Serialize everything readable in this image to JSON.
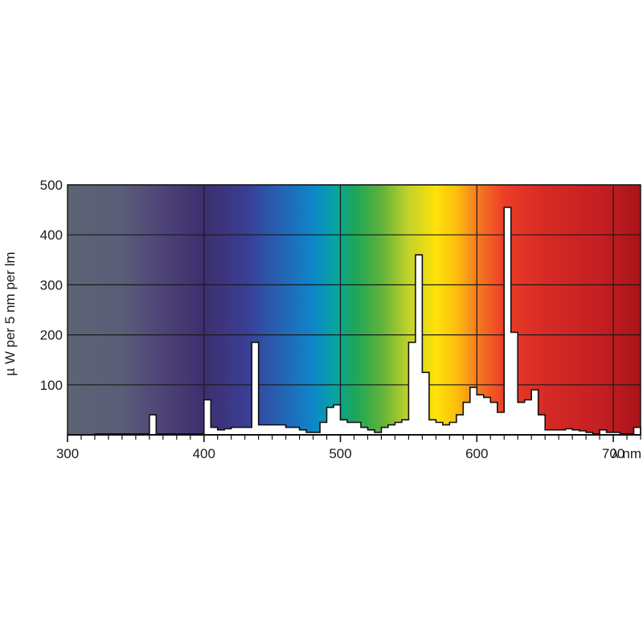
{
  "chart_data": {
    "type": "area",
    "title": "",
    "xlabel": "λ nm",
    "ylabel": "µ W per 5 nm per lm",
    "xlim": [
      300,
      720
    ],
    "ylim": [
      0,
      500
    ],
    "x_ticks": [
      300,
      400,
      500,
      600,
      700
    ],
    "y_ticks": [
      100,
      200,
      300,
      400,
      500
    ],
    "y_tick_labels": [
      "100",
      "200",
      "300",
      "400",
      "500"
    ],
    "x_tick_labels": [
      "300",
      "400",
      "500",
      "600",
      "700"
    ],
    "grid": true,
    "background": "visible-spectrum-gradient",
    "series": [
      {
        "x_start": [
          320,
          325,
          330,
          335,
          340,
          345,
          350,
          355,
          360,
          365,
          370,
          375,
          380,
          385,
          390,
          395,
          400,
          405,
          410,
          415,
          420,
          425,
          430,
          435,
          440,
          445,
          450,
          455,
          460,
          465,
          470,
          475,
          480,
          485,
          490,
          495,
          500,
          505,
          510,
          515,
          520,
          525,
          530,
          535,
          540,
          545,
          550,
          555,
          560,
          565,
          570,
          575,
          580,
          585,
          590,
          595,
          600,
          605,
          610,
          615,
          620,
          625,
          630,
          635,
          640,
          645,
          650,
          655,
          660,
          665,
          670,
          675,
          680,
          685,
          690,
          695,
          700,
          705,
          710,
          715
        ],
        "values": [
          2,
          2,
          2,
          2,
          2,
          2,
          2,
          2,
          40,
          2,
          2,
          2,
          2,
          2,
          2,
          2,
          70,
          15,
          10,
          12,
          15,
          15,
          15,
          185,
          20,
          20,
          20,
          20,
          15,
          15,
          10,
          5,
          5,
          25,
          55,
          60,
          30,
          25,
          25,
          15,
          10,
          5,
          15,
          20,
          25,
          30,
          185,
          360,
          125,
          30,
          25,
          20,
          25,
          40,
          65,
          95,
          80,
          75,
          65,
          45,
          455,
          205,
          65,
          70,
          90,
          40,
          10,
          10,
          10,
          12,
          10,
          8,
          5,
          2,
          10,
          5,
          5,
          2,
          2,
          15
        ]
      }
    ]
  },
  "colors": {
    "spectrum_stops": [
      {
        "wavelength": 300,
        "color": "#5c6474"
      },
      {
        "wavelength": 340,
        "color": "#5a5d78"
      },
      {
        "wavelength": 370,
        "color": "#4d4377"
      },
      {
        "wavelength": 400,
        "color": "#3d2f6e"
      },
      {
        "wavelength": 430,
        "color": "#3a3d92"
      },
      {
        "wavelength": 460,
        "color": "#2268b8"
      },
      {
        "wavelength": 480,
        "color": "#0d86c8"
      },
      {
        "wavelength": 495,
        "color": "#07a3a6"
      },
      {
        "wavelength": 510,
        "color": "#1aa65a"
      },
      {
        "wavelength": 530,
        "color": "#5fb23a"
      },
      {
        "wavelength": 550,
        "color": "#c2d22a"
      },
      {
        "wavelength": 570,
        "color": "#ffe20a"
      },
      {
        "wavelength": 585,
        "color": "#fbbf0c"
      },
      {
        "wavelength": 600,
        "color": "#f57c20"
      },
      {
        "wavelength": 620,
        "color": "#ec3d27"
      },
      {
        "wavelength": 650,
        "color": "#d62a25"
      },
      {
        "wavelength": 690,
        "color": "#c41f22"
      },
      {
        "wavelength": 720,
        "color": "#a8141a"
      }
    ],
    "grid": "#1a1a1a",
    "fill": "#ffffff",
    "outline": "#111111"
  }
}
